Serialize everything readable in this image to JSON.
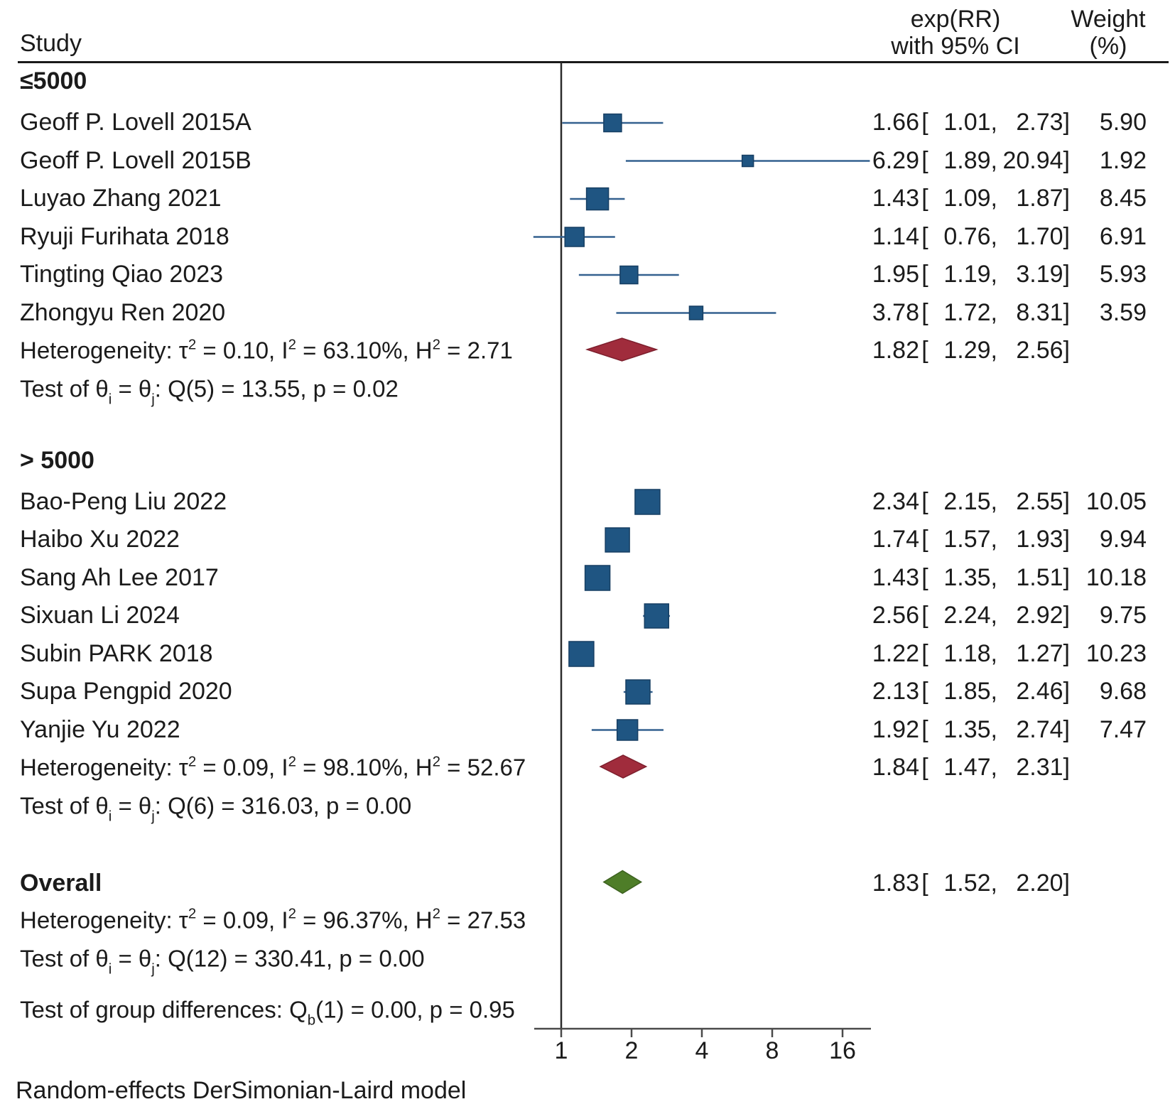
{
  "header": {
    "study": "Study",
    "effect_line1": "exp(RR)",
    "effect_line2": "with 95% CI",
    "weight_line1": "Weight",
    "weight_line2": "(%)"
  },
  "footer": {
    "model_note": "Random-effects DerSimonian-Laird model"
  },
  "chart_data": {
    "type": "forest",
    "effect_measure": "exp(RR)",
    "x_axis": {
      "scale": "log2",
      "ticks": [
        1,
        2,
        4,
        8,
        16
      ],
      "ref_line_value": 1,
      "range": [
        0.76,
        20.94
      ]
    },
    "colors": {
      "square_fill": "#1f5582",
      "square_border": "#173f63",
      "ci_line": "#34618f",
      "subgroup_diamond_fill": "#a02c3c",
      "subgroup_diamond_border": "#7d1f2d",
      "overall_diamond_fill": "#4e7d28",
      "overall_diamond_border": "#3c611f",
      "ref_line": "#2b2b2b",
      "axis_line": "#4a4a4a",
      "text": "#1b1b1b"
    },
    "groups": [
      {
        "label": "≤5000",
        "studies": [
          {
            "name": "Geoff P. Lovell 2015A",
            "est": 1.66,
            "lo": 1.01,
            "hi": 2.73,
            "weight": 5.9
          },
          {
            "name": "Geoff P. Lovell 2015B",
            "est": 6.29,
            "lo": 1.89,
            "hi": 20.94,
            "weight": 1.92
          },
          {
            "name": "Luyao Zhang 2021",
            "est": 1.43,
            "lo": 1.09,
            "hi": 1.87,
            "weight": 8.45
          },
          {
            "name": "Ryuji Furihata 2018",
            "est": 1.14,
            "lo": 0.76,
            "hi": 1.7,
            "weight": 6.91
          },
          {
            "name": "Tingting Qiao 2023",
            "est": 1.95,
            "lo": 1.19,
            "hi": 3.19,
            "weight": 5.93
          },
          {
            "name": "Zhongyu Ren 2020",
            "est": 3.78,
            "lo": 1.72,
            "hi": 8.31,
            "weight": 3.59
          }
        ],
        "summary": {
          "est": 1.82,
          "lo": 1.29,
          "hi": 2.56,
          "het_line": "Heterogeneity: τ^2^ = 0.10, I^2^ = 63.10%, H^2^ = 2.71",
          "test_line": "Test of θ~i~ = θ~j~: Q(5) = 13.55, p = 0.02"
        }
      },
      {
        "label": "> 5000",
        "studies": [
          {
            "name": "Bao-Peng Liu 2022",
            "est": 2.34,
            "lo": 2.15,
            "hi": 2.55,
            "weight": 10.05
          },
          {
            "name": "Haibo Xu 2022",
            "est": 1.74,
            "lo": 1.57,
            "hi": 1.93,
            "weight": 9.94
          },
          {
            "name": "Sang Ah Lee 2017",
            "est": 1.43,
            "lo": 1.35,
            "hi": 1.51,
            "weight": 10.18
          },
          {
            "name": "Sixuan Li 2024",
            "est": 2.56,
            "lo": 2.24,
            "hi": 2.92,
            "weight": 9.75
          },
          {
            "name": "Subin PARK 2018",
            "est": 1.22,
            "lo": 1.18,
            "hi": 1.27,
            "weight": 10.23
          },
          {
            "name": "Supa Pengpid 2020",
            "est": 2.13,
            "lo": 1.85,
            "hi": 2.46,
            "weight": 9.68
          },
          {
            "name": "Yanjie Yu 2022",
            "est": 1.92,
            "lo": 1.35,
            "hi": 2.74,
            "weight": 7.47
          }
        ],
        "summary": {
          "est": 1.84,
          "lo": 1.47,
          "hi": 2.31,
          "het_line": "Heterogeneity: τ^2^ = 0.09, I^2^ = 98.10%, H^2^ = 52.67",
          "test_line": "Test of θ~i~ = θ~j~: Q(6) = 316.03, p = 0.00"
        }
      }
    ],
    "overall": {
      "label": "Overall",
      "est": 1.83,
      "lo": 1.52,
      "hi": 2.2,
      "het_line": "Heterogeneity: τ^2^ = 0.09, I^2^ = 96.37%, H^2^ = 27.53",
      "test_line": "Test of θ~i~ = θ~j~: Q(12) = 330.41, p = 0.00",
      "group_diff_line": "Test of group differences: Q~b~(1) = 0.00, p = 0.95"
    }
  }
}
